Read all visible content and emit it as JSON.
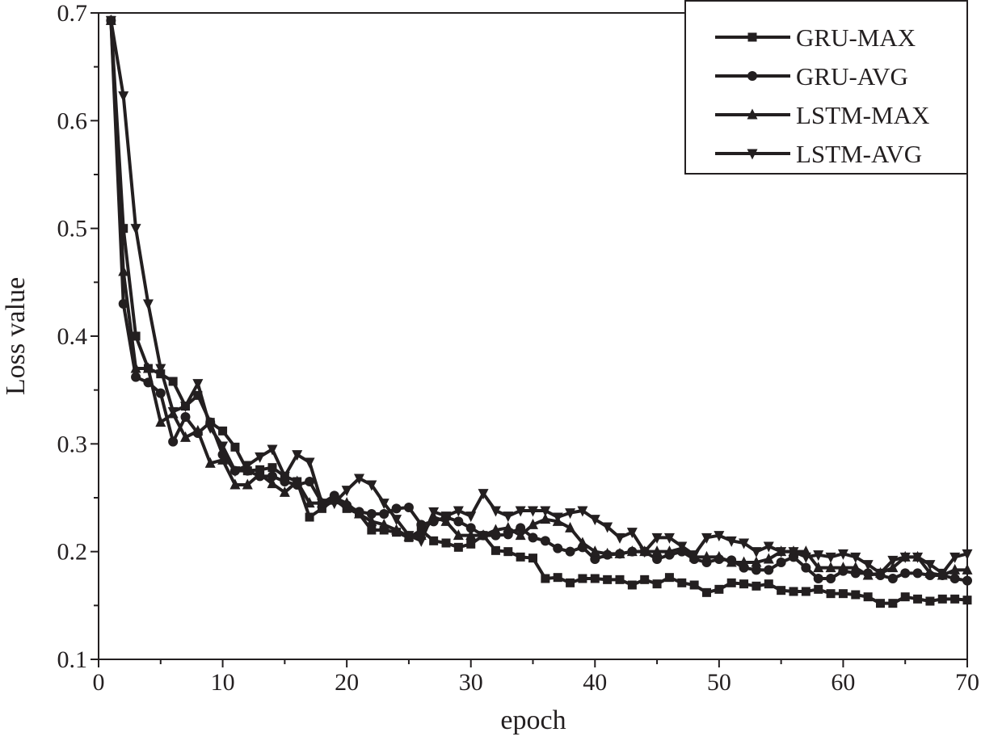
{
  "chart_data": {
    "type": "line",
    "title": "",
    "xlabel": "epoch",
    "ylabel": "Loss value",
    "xlim": [
      0,
      70
    ],
    "ylim": [
      0.1,
      0.7
    ],
    "xticks": [
      0,
      10,
      20,
      30,
      40,
      50,
      60,
      70
    ],
    "xtick_labels": [
      "0",
      "10",
      "20",
      "30",
      "40",
      "50",
      "60",
      "70"
    ],
    "yticks": [
      0.1,
      0.2,
      0.3,
      0.4,
      0.5,
      0.6,
      0.7
    ],
    "ytick_labels": [
      "0.1",
      "0.2",
      "0.3",
      "0.4",
      "0.5",
      "0.6",
      "0.7"
    ],
    "grid": false,
    "legend_position": "top-right",
    "color": "#231f20",
    "x": [
      1,
      2,
      3,
      4,
      5,
      6,
      7,
      8,
      9,
      10,
      11,
      12,
      13,
      14,
      15,
      16,
      17,
      18,
      19,
      20,
      21,
      22,
      23,
      24,
      25,
      26,
      27,
      28,
      29,
      30,
      31,
      32,
      33,
      34,
      35,
      36,
      37,
      38,
      39,
      40,
      41,
      42,
      43,
      44,
      45,
      46,
      47,
      48,
      49,
      50,
      51,
      52,
      53,
      54,
      55,
      56,
      57,
      58,
      59,
      60,
      61,
      62,
      63,
      64,
      65,
      66,
      67,
      68,
      69,
      70
    ],
    "series": [
      {
        "name": "GRU-MAX",
        "marker": "square",
        "values": [
          0.693,
          0.5,
          0.4,
          0.37,
          0.365,
          0.358,
          0.335,
          0.345,
          0.32,
          0.312,
          0.297,
          0.275,
          0.276,
          0.278,
          0.27,
          0.265,
          0.232,
          0.24,
          0.248,
          0.24,
          0.235,
          0.22,
          0.22,
          0.218,
          0.213,
          0.22,
          0.21,
          0.208,
          0.204,
          0.207,
          0.215,
          0.201,
          0.2,
          0.195,
          0.194,
          0.175,
          0.176,
          0.171,
          0.175,
          0.175,
          0.174,
          0.174,
          0.169,
          0.174,
          0.17,
          0.176,
          0.171,
          0.169,
          0.162,
          0.165,
          0.171,
          0.17,
          0.168,
          0.17,
          0.164,
          0.163,
          0.163,
          0.165,
          0.161,
          0.161,
          0.16,
          0.158,
          0.152,
          0.152,
          0.158,
          0.156,
          0.154,
          0.156,
          0.156,
          0.155
        ]
      },
      {
        "name": "GRU-AVG",
        "marker": "circle",
        "values": [
          0.693,
          0.43,
          0.362,
          0.357,
          0.347,
          0.302,
          0.325,
          0.31,
          0.32,
          0.29,
          0.275,
          0.275,
          0.27,
          0.27,
          0.265,
          0.262,
          0.265,
          0.245,
          0.252,
          0.243,
          0.237,
          0.235,
          0.235,
          0.24,
          0.241,
          0.225,
          0.228,
          0.232,
          0.228,
          0.222,
          0.215,
          0.215,
          0.216,
          0.222,
          0.213,
          0.21,
          0.203,
          0.2,
          0.204,
          0.193,
          0.197,
          0.198,
          0.2,
          0.2,
          0.193,
          0.197,
          0.2,
          0.193,
          0.19,
          0.193,
          0.192,
          0.185,
          0.183,
          0.183,
          0.19,
          0.195,
          0.185,
          0.175,
          0.175,
          0.182,
          0.18,
          0.18,
          0.178,
          0.175,
          0.18,
          0.18,
          0.178,
          0.178,
          0.175,
          0.173
        ]
      },
      {
        "name": "LSTM-MAX",
        "marker": "triangle-up",
        "values": [
          0.693,
          0.46,
          0.37,
          0.37,
          0.32,
          0.328,
          0.306,
          0.312,
          0.282,
          0.285,
          0.262,
          0.262,
          0.272,
          0.263,
          0.255,
          0.265,
          0.245,
          0.245,
          0.25,
          0.245,
          0.235,
          0.228,
          0.225,
          0.22,
          0.214,
          0.215,
          0.232,
          0.228,
          0.215,
          0.215,
          0.215,
          0.22,
          0.222,
          0.215,
          0.225,
          0.23,
          0.228,
          0.222,
          0.208,
          0.2,
          0.198,
          0.198,
          0.2,
          0.2,
          0.2,
          0.2,
          0.203,
          0.195,
          0.195,
          0.195,
          0.19,
          0.19,
          0.19,
          0.193,
          0.2,
          0.2,
          0.2,
          0.185,
          0.185,
          0.185,
          0.185,
          0.178,
          0.18,
          0.185,
          0.195,
          0.195,
          0.18,
          0.178,
          0.183,
          0.183
        ]
      },
      {
        "name": "LSTM-AVG",
        "marker": "triangle-down",
        "values": [
          0.693,
          0.623,
          0.5,
          0.43,
          0.37,
          0.33,
          0.335,
          0.356,
          0.315,
          0.298,
          0.275,
          0.28,
          0.288,
          0.295,
          0.27,
          0.29,
          0.283,
          0.245,
          0.245,
          0.257,
          0.268,
          0.262,
          0.245,
          0.23,
          0.215,
          0.21,
          0.237,
          0.233,
          0.238,
          0.233,
          0.254,
          0.238,
          0.233,
          0.238,
          0.238,
          0.238,
          0.232,
          0.236,
          0.238,
          0.23,
          0.223,
          0.213,
          0.218,
          0.2,
          0.213,
          0.213,
          0.205,
          0.197,
          0.213,
          0.215,
          0.21,
          0.208,
          0.2,
          0.205,
          0.2,
          0.2,
          0.195,
          0.197,
          0.195,
          0.198,
          0.195,
          0.188,
          0.18,
          0.192,
          0.195,
          0.195,
          0.188,
          0.18,
          0.195,
          0.198
        ]
      }
    ]
  }
}
